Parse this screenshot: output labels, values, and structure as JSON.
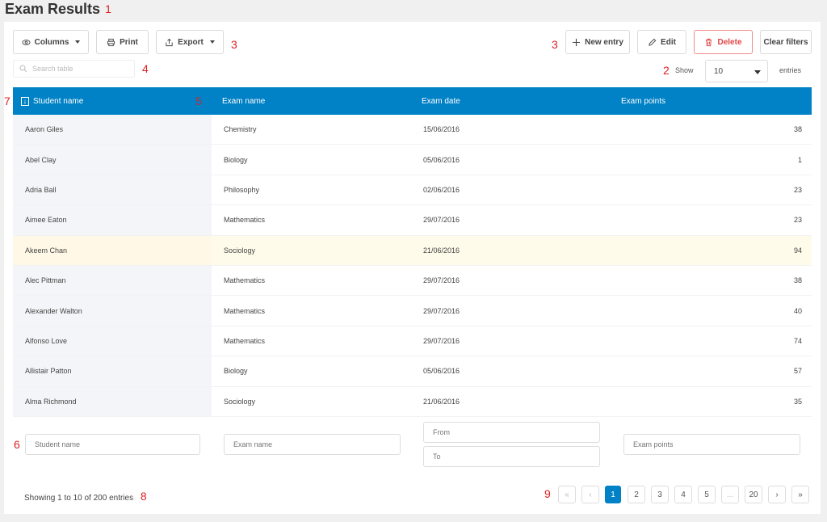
{
  "page": {
    "title": "Exam Results"
  },
  "markers": [
    "1",
    "2",
    "3",
    "3",
    "4",
    "5",
    "6",
    "7",
    "8",
    "9"
  ],
  "toolbar": {
    "columns_label": "Columns",
    "print_label": "Print",
    "export_label": "Export",
    "new_entry_label": "New entry",
    "edit_label": "Edit",
    "delete_label": "Delete",
    "clear_filters_label": "Clear filters"
  },
  "search": {
    "placeholder": "Search table"
  },
  "page_size": {
    "show_label": "Show",
    "value": "10",
    "entries_label": "entries"
  },
  "table": {
    "columns": [
      "Student name",
      "Exam name",
      "Exam date",
      "Exam points"
    ],
    "rows": [
      {
        "name": "Aaron Giles",
        "exam": "Chemistry",
        "date": "15/06/2016",
        "points": "38"
      },
      {
        "name": "Abel Clay",
        "exam": "Biology",
        "date": "05/06/2016",
        "points": "1"
      },
      {
        "name": "Adria Ball",
        "exam": "Philosophy",
        "date": "02/06/2016",
        "points": "23"
      },
      {
        "name": "Aimee Eaton",
        "exam": "Mathematics",
        "date": "29/07/2016",
        "points": "23"
      },
      {
        "name": "Akeem Chan",
        "exam": "Sociology",
        "date": "21/06/2016",
        "points": "94"
      },
      {
        "name": "Alec Pittman",
        "exam": "Mathematics",
        "date": "29/07/2016",
        "points": "38"
      },
      {
        "name": "Alexander Walton",
        "exam": "Mathematics",
        "date": "29/07/2016",
        "points": "40"
      },
      {
        "name": "Alfonso Love",
        "exam": "Mathematics",
        "date": "29/07/2016",
        "points": "74"
      },
      {
        "name": "Allistair Patton",
        "exam": "Biology",
        "date": "05/06/2016",
        "points": "57"
      },
      {
        "name": "Alma Richmond",
        "exam": "Sociology",
        "date": "21/06/2016",
        "points": "35"
      }
    ]
  },
  "filters": {
    "student_name_placeholder": "Student name",
    "exam_name_placeholder": "Exam name",
    "date_from_placeholder": "From",
    "date_to_placeholder": "To",
    "exam_points_placeholder": "Exam points"
  },
  "footer": {
    "summary": "Showing 1 to 10 of 200 entries"
  },
  "pagination": {
    "first": "«",
    "prev": "‹",
    "pages": [
      "1",
      "2",
      "3",
      "4",
      "5"
    ],
    "ellipsis": "...",
    "last_page": "20",
    "next": "›",
    "last": "»",
    "current": "1"
  },
  "colors": {
    "accent": "#0181c6",
    "delete": "#e04545",
    "highlight_row": "#fffbea",
    "marker": "#e02020"
  },
  "icons": [
    "eye-icon",
    "printer-icon",
    "export-icon",
    "plus-icon",
    "pencil-icon",
    "trash-icon",
    "search-icon",
    "sort-down-icon"
  ]
}
